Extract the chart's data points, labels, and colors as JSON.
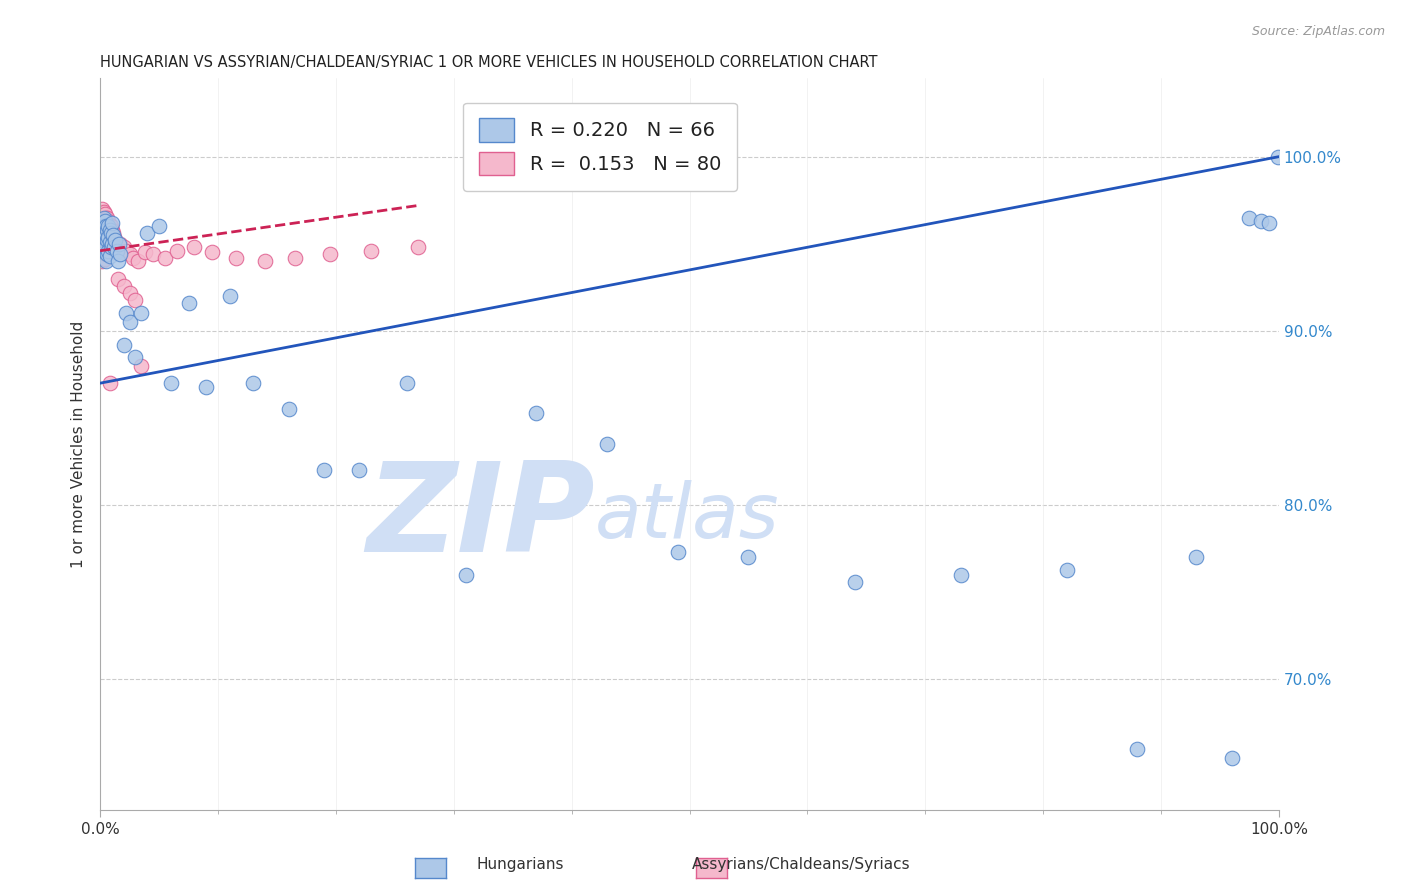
{
  "title": "HUNGARIAN VS ASSYRIAN/CHALDEAN/SYRIAC 1 OR MORE VEHICLES IN HOUSEHOLD CORRELATION CHART",
  "source": "Source: ZipAtlas.com",
  "ylabel": "1 or more Vehicles in Household",
  "right_ytick_labels": [
    "70.0%",
    "80.0%",
    "90.0%",
    "100.0%"
  ],
  "right_ytick_values": [
    0.7,
    0.8,
    0.9,
    1.0
  ],
  "xlim": [
    0.0,
    1.0
  ],
  "ylim": [
    0.625,
    1.045
  ],
  "blue_R": 0.22,
  "blue_N": 66,
  "pink_R": 0.153,
  "pink_N": 80,
  "blue_color": "#adc8e8",
  "blue_edge_color": "#5588cc",
  "pink_color": "#f5b8cc",
  "pink_edge_color": "#e06090",
  "trend_blue_color": "#2255bb",
  "trend_pink_color": "#cc2255",
  "watermark_zip": "ZIP",
  "watermark_atlas": "atlas",
  "watermark_color": "#d0dff5",
  "grid_color": "#cccccc",
  "grid_style": "--",
  "bg_color": "#ffffff",
  "blue_x": [
    0.001,
    0.002,
    0.002,
    0.003,
    0.003,
    0.003,
    0.003,
    0.004,
    0.004,
    0.004,
    0.004,
    0.005,
    0.005,
    0.005,
    0.005,
    0.006,
    0.006,
    0.006,
    0.007,
    0.007,
    0.007,
    0.008,
    0.008,
    0.008,
    0.009,
    0.009,
    0.01,
    0.01,
    0.011,
    0.012,
    0.013,
    0.014,
    0.015,
    0.016,
    0.017,
    0.02,
    0.022,
    0.025,
    0.03,
    0.035,
    0.04,
    0.05,
    0.06,
    0.075,
    0.09,
    0.11,
    0.13,
    0.16,
    0.19,
    0.22,
    0.26,
    0.31,
    0.37,
    0.43,
    0.49,
    0.55,
    0.64,
    0.73,
    0.82,
    0.88,
    0.93,
    0.96,
    0.975,
    0.985,
    0.992,
    0.999
  ],
  "blue_y": [
    0.958,
    0.962,
    0.955,
    0.965,
    0.96,
    0.958,
    0.952,
    0.963,
    0.957,
    0.951,
    0.945,
    0.96,
    0.955,
    0.948,
    0.94,
    0.958,
    0.952,
    0.944,
    0.96,
    0.954,
    0.946,
    0.958,
    0.951,
    0.943,
    0.956,
    0.948,
    0.962,
    0.95,
    0.955,
    0.948,
    0.952,
    0.946,
    0.94,
    0.95,
    0.944,
    0.892,
    0.91,
    0.905,
    0.885,
    0.91,
    0.956,
    0.96,
    0.87,
    0.916,
    0.868,
    0.92,
    0.87,
    0.855,
    0.82,
    0.82,
    0.87,
    0.76,
    0.853,
    0.835,
    0.773,
    0.77,
    0.756,
    0.76,
    0.763,
    0.66,
    0.77,
    0.655,
    0.965,
    0.963,
    0.962,
    1.0
  ],
  "pink_x": [
    0.001,
    0.001,
    0.001,
    0.001,
    0.002,
    0.002,
    0.002,
    0.002,
    0.002,
    0.002,
    0.002,
    0.003,
    0.003,
    0.003,
    0.003,
    0.003,
    0.003,
    0.004,
    0.004,
    0.004,
    0.004,
    0.004,
    0.004,
    0.005,
    0.005,
    0.005,
    0.005,
    0.005,
    0.006,
    0.006,
    0.006,
    0.006,
    0.006,
    0.007,
    0.007,
    0.007,
    0.007,
    0.008,
    0.008,
    0.008,
    0.008,
    0.009,
    0.009,
    0.009,
    0.01,
    0.01,
    0.01,
    0.011,
    0.011,
    0.012,
    0.012,
    0.013,
    0.014,
    0.015,
    0.016,
    0.017,
    0.018,
    0.02,
    0.022,
    0.025,
    0.028,
    0.032,
    0.038,
    0.045,
    0.055,
    0.065,
    0.08,
    0.095,
    0.115,
    0.14,
    0.165,
    0.195,
    0.23,
    0.27,
    0.015,
    0.02,
    0.025,
    0.03,
    0.035,
    0.008
  ],
  "pink_y": [
    0.968,
    0.963,
    0.958,
    0.952,
    0.97,
    0.965,
    0.96,
    0.955,
    0.95,
    0.945,
    0.94,
    0.968,
    0.963,
    0.958,
    0.953,
    0.948,
    0.942,
    0.967,
    0.962,
    0.957,
    0.952,
    0.947,
    0.941,
    0.965,
    0.96,
    0.955,
    0.95,
    0.944,
    0.965,
    0.96,
    0.955,
    0.95,
    0.944,
    0.963,
    0.958,
    0.953,
    0.947,
    0.961,
    0.956,
    0.951,
    0.945,
    0.96,
    0.954,
    0.948,
    0.958,
    0.953,
    0.947,
    0.956,
    0.95,
    0.954,
    0.948,
    0.952,
    0.95,
    0.948,
    0.946,
    0.95,
    0.945,
    0.948,
    0.946,
    0.944,
    0.942,
    0.94,
    0.945,
    0.944,
    0.942,
    0.946,
    0.948,
    0.945,
    0.942,
    0.94,
    0.942,
    0.944,
    0.946,
    0.948,
    0.93,
    0.926,
    0.922,
    0.918,
    0.88,
    0.87
  ],
  "blue_trend_x0": 0.0,
  "blue_trend_y0": 0.87,
  "blue_trend_x1": 1.0,
  "blue_trend_y1": 1.0,
  "pink_trend_x0": 0.0,
  "pink_trend_y0": 0.946,
  "pink_trend_x1": 0.27,
  "pink_trend_y1": 0.972
}
